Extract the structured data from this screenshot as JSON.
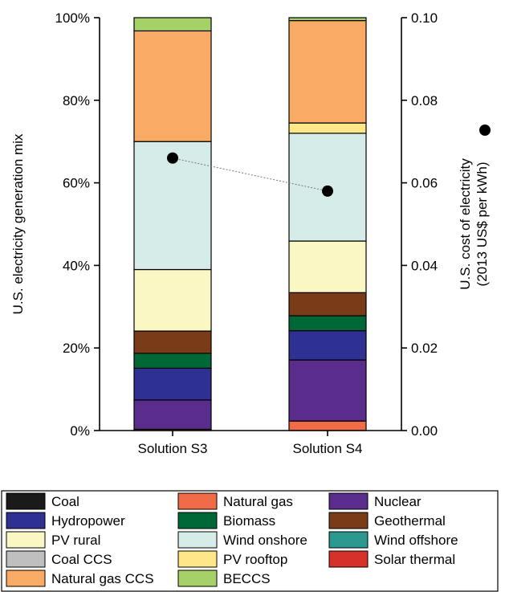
{
  "chart_data": {
    "type": "bar",
    "stacked": true,
    "categories": [
      "Solution S3",
      "Solution S4"
    ],
    "y_axis_left": {
      "label": "U.S. electricity generation mix",
      "range": [
        0,
        100
      ],
      "ticks": [
        "0%",
        "20%",
        "40%",
        "60%",
        "80%",
        "100%"
      ],
      "tick_values": [
        0,
        20,
        40,
        60,
        80,
        100
      ]
    },
    "y_axis_right": {
      "label_line1": "U.S. cost of electricity",
      "label_line2": "(2013 US$ per kWh)",
      "range": [
        0,
        0.1
      ],
      "ticks": [
        "0.00",
        "0.02",
        "0.04",
        "0.06",
        "0.08",
        "0.10"
      ],
      "tick_values": [
        0,
        0.02,
        0.04,
        0.06,
        0.08,
        0.1
      ],
      "marker": "black-circle"
    },
    "series": [
      {
        "name": "Coal",
        "color": "#1a1a1a",
        "values": [
          0,
          0
        ]
      },
      {
        "name": "Natural gas",
        "color": "#f26b47",
        "values": [
          0.3,
          2.3
        ]
      },
      {
        "name": "Nuclear",
        "color": "#5a2d8c",
        "values": [
          7.1,
          14.8
        ]
      },
      {
        "name": "Hydropower",
        "color": "#2e3192",
        "values": [
          7.7,
          7.1
        ]
      },
      {
        "name": "Biomass",
        "color": "#006837",
        "values": [
          3.6,
          3.6
        ]
      },
      {
        "name": "Geothermal",
        "color": "#7a3b18",
        "values": [
          5.4,
          5.6
        ]
      },
      {
        "name": "PV rural",
        "color": "#fbf7c4",
        "values": [
          14.9,
          12.5
        ]
      },
      {
        "name": "Wind onshore",
        "color": "#d5ece9",
        "values": [
          31.0,
          26.1
        ]
      },
      {
        "name": "Wind offshore",
        "color": "#2c9991",
        "values": [
          0,
          0
        ]
      },
      {
        "name": "Coal CCS",
        "color": "#bfbfbf",
        "values": [
          0,
          0
        ]
      },
      {
        "name": "PV rooftop",
        "color": "#ffe789",
        "values": [
          0,
          2.5
        ]
      },
      {
        "name": "Solar thermal",
        "color": "#d7322a",
        "values": [
          0,
          0
        ]
      },
      {
        "name": "Natural gas CCS",
        "color": "#f9aa65",
        "values": [
          26.8,
          24.8
        ]
      },
      {
        "name": "BECCS",
        "color": "#a6d168",
        "values": [
          3.2,
          0.7
        ]
      }
    ],
    "cost_points": [
      0.066,
      0.058
    ],
    "legend_order": [
      [
        "Coal",
        "Natural gas",
        "Nuclear"
      ],
      [
        "Hydropower",
        "Biomass",
        "Geothermal"
      ],
      [
        "PV rural",
        "Wind onshore",
        "Wind offshore"
      ],
      [
        "Coal CCS",
        "PV rooftop",
        "Solar thermal"
      ],
      [
        "Natural gas CCS",
        "BECCS"
      ]
    ],
    "legend_placement": "bottom"
  }
}
